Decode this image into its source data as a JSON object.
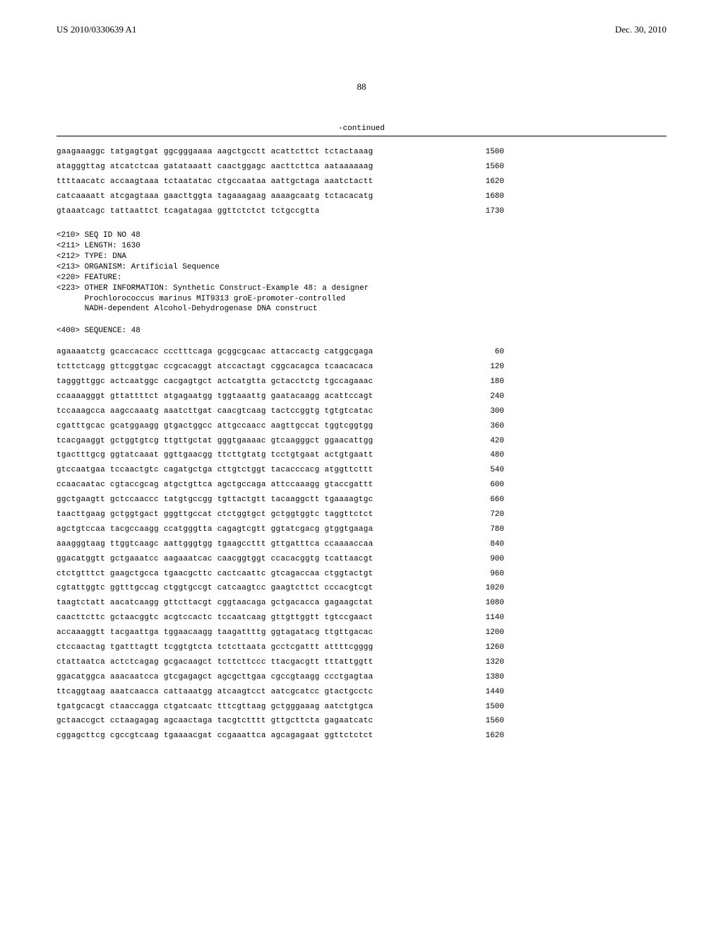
{
  "header": {
    "publication_number": "US 2010/0330639 A1",
    "publication_date": "Dec. 30, 2010"
  },
  "page_number": "88",
  "continued_label": "-continued",
  "sequence_block_1": {
    "lines": [
      {
        "text": "gaagaaaggc tatgagtgat ggcgggaaaa aagctgcctt acattcttct tctactaaag",
        "pos": "1500"
      },
      {
        "text": "atagggttag atcatctcaa gatataaatt caactggagc aacttcttca aataaaaaag",
        "pos": "1560"
      },
      {
        "text": "ttttaacatc accaagtaaa tctaatatac ctgccaataa aattgctaga aaatctactt",
        "pos": "1620"
      },
      {
        "text": "catcaaaatt atcgagtaaa gaacttggta tagaaagaag aaaagcaatg tctacacatg",
        "pos": "1680"
      },
      {
        "text": "gtaaatcagc tattaattct tcagatagaa ggttctctct tctgccgtta",
        "pos": "1730"
      }
    ]
  },
  "metadata_block": {
    "seq_id": "<210> SEQ ID NO 48",
    "length": "<211> LENGTH: 1630",
    "type": "<212> TYPE: DNA",
    "organism": "<213> ORGANISM: Artificial Sequence",
    "feature": "<220> FEATURE:",
    "other_info_line1": "<223> OTHER INFORMATION: Synthetic Construct-Example 48: a designer",
    "other_info_line2": "      Prochlorococcus marinus MIT9313 groE-promoter-controlled",
    "other_info_line3": "      NADH-dependent Alcohol-Dehydrogenase DNA construct"
  },
  "sequence_header_2": "<400> SEQUENCE: 48",
  "sequence_block_2": {
    "lines": [
      {
        "text": "agaaaatctg gcaccacacc ccctttcaga gcggcgcaac attaccactg catggcgaga",
        "pos": "60"
      },
      {
        "text": "tcttctcagg gttcggtgac ccgcacaggt atccactagt cggcacagca tcaacacaca",
        "pos": "120"
      },
      {
        "text": "tagggttggc actcaatggc cacgagtgct actcatgtta gctacctctg tgccagaaac",
        "pos": "180"
      },
      {
        "text": "ccaaaagggt gttattttct atgagaatgg tggtaaattg gaatacaagg acattccagt",
        "pos": "240"
      },
      {
        "text": "tccaaagcca aagccaaatg aaatcttgat caacgtcaag tactccggtg tgtgtcatac",
        "pos": "300"
      },
      {
        "text": "cgatttgcac gcatggaagg gtgactggcc attgccaacc aagttgccat tggtcggtgg",
        "pos": "360"
      },
      {
        "text": "tcacgaaggt gctggtgtcg ttgttgctat gggtgaaaac gtcaagggct ggaacattgg",
        "pos": "420"
      },
      {
        "text": "tgactttgcg ggtatcaaat ggttgaacgg ttcttgtatg tcctgtgaat actgtgaatt",
        "pos": "480"
      },
      {
        "text": "gtccaatgaa tccaactgtc cagatgctga cttgtctggt tacacccacg atggttcttt",
        "pos": "540"
      },
      {
        "text": "ccaacaatac cgtaccgcag atgctgttca agctgccaga attccaaagg gtaccgattt",
        "pos": "600"
      },
      {
        "text": "ggctgaagtt gctccaaccc tatgtgccgg tgttactgtt tacaaggctt tgaaaagtgc",
        "pos": "660"
      },
      {
        "text": "taacttgaag gctggtgact gggttgccat ctctggtgct gctggtggtc taggttctct",
        "pos": "720"
      },
      {
        "text": "agctgtccaa tacgccaagg ccatgggtta cagagtcgtt ggtatcgacg gtggtgaaga",
        "pos": "780"
      },
      {
        "text": "aaagggtaag ttggtcaagc aattgggtgg tgaagccttt gttgatttca ccaaaaccaa",
        "pos": "840"
      },
      {
        "text": "ggacatggtt gctgaaatcc aagaaatcac caacggtggt ccacacggtg tcattaacgt",
        "pos": "900"
      },
      {
        "text": "ctctgtttct gaagctgcca tgaacgcttc cactcaattc gtcagaccaa ctggtactgt",
        "pos": "960"
      },
      {
        "text": "cgtattggtc ggtttgccag ctggtgccgt catcaagtcc gaagtcttct cccacgtcgt",
        "pos": "1020"
      },
      {
        "text": "taagtctatt aacatcaagg gttcttacgt cggtaacaga gctgacacca gagaagctat",
        "pos": "1080"
      },
      {
        "text": "caacttcttc gctaacggtc acgtccactc tccaatcaag gttgttggtt tgtccgaact",
        "pos": "1140"
      },
      {
        "text": "accaaaggtt tacgaattga tggaacaagg taagattttg ggtagatacg ttgttgacac",
        "pos": "1200"
      },
      {
        "text": "ctccaactag tgatttagtt tcggtgtcta tctcttaata gcctcgattt attttcgggg",
        "pos": "1260"
      },
      {
        "text": "ctattaatca actctcagag gcgacaagct tcttcttccc ttacgacgtt tttattggtt",
        "pos": "1320"
      },
      {
        "text": "ggacatggca aaacaatcca gtcgagagct agcgcttgaa cgccgtaagg ccctgagtaa",
        "pos": "1380"
      },
      {
        "text": "ttcaggtaag aaatcaacca cattaaatgg atcaagtcct aatcgcatcc gtactgcctc",
        "pos": "1440"
      },
      {
        "text": "tgatgcacgt ctaaccagga ctgatcaatc tttcgttaag gctgggaaag aatctgtgca",
        "pos": "1500"
      },
      {
        "text": "gctaaccgct cctaagagag agcaactaga tacgtctttt gttgcttcta gagaatcatc",
        "pos": "1560"
      },
      {
        "text": "cggagcttcg cgccgtcaag tgaaaacgat ccgaaattca agcagagaat ggttctctct",
        "pos": "1620"
      }
    ]
  }
}
